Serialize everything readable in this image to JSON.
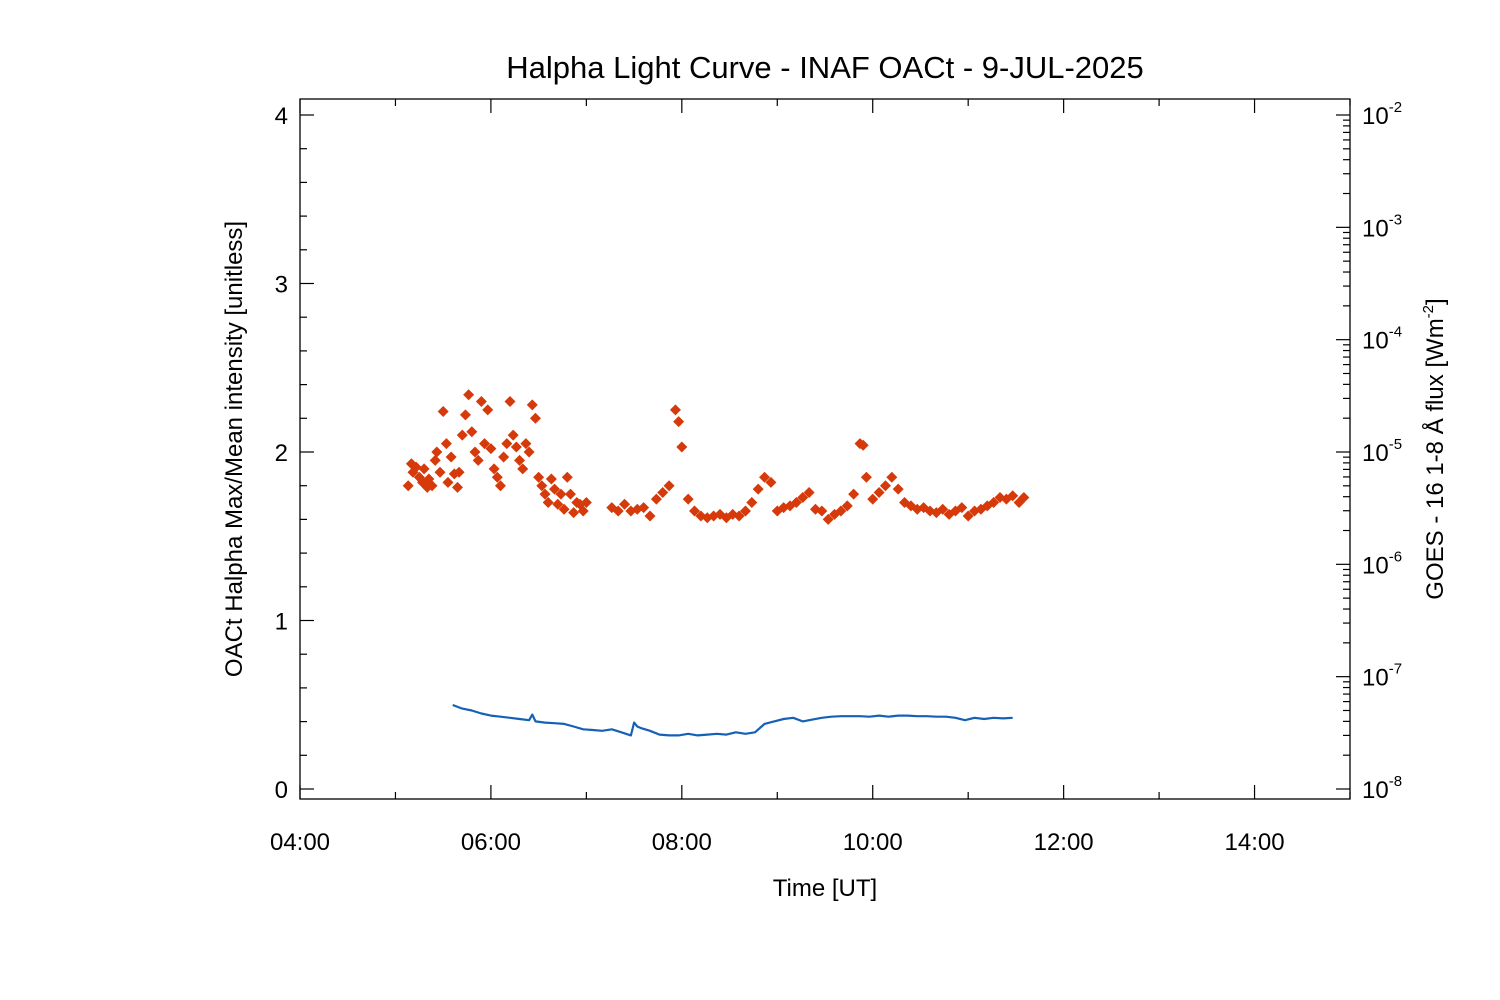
{
  "chart_data": {
    "type": "scatter",
    "title": "Halpha Light Curve - INAF OACt -  9-JUL-2025",
    "xlabel": "Time [UT]",
    "ylabel": "OACt Halpha Max/Mean intensity [unitless]",
    "y2label": {
      "main": "GOES - 16 1-8 Å flux [Wm",
      "exp": "-2",
      "close": "]"
    },
    "xlim": [
      "04:00",
      "15:00"
    ],
    "x_ticks": [
      "04:00",
      "06:00",
      "08:00",
      "10:00",
      "12:00",
      "14:00"
    ],
    "ylim": [
      0,
      4
    ],
    "y_ticks": [
      "0",
      "1",
      "2",
      "3",
      "4"
    ],
    "y2_scale": "log",
    "y2lim": [
      1e-08,
      0.01
    ],
    "y2_ticks": [
      {
        "base": "10",
        "exp": "-8"
      },
      {
        "base": "10",
        "exp": "-7"
      },
      {
        "base": "10",
        "exp": "-6"
      },
      {
        "base": "10",
        "exp": "-5"
      },
      {
        "base": "10",
        "exp": "-4"
      },
      {
        "base": "10",
        "exp": "-3"
      },
      {
        "base": "10",
        "exp": "-2"
      }
    ],
    "grid": false,
    "series": [
      {
        "marker": "diamond",
        "color": "#d63a0a",
        "axis": "left",
        "x": [
          "05:08",
          "05:10",
          "05:11",
          "05:13",
          "05:15",
          "05:17",
          "05:18",
          "05:20",
          "05:21",
          "05:23",
          "05:25",
          "05:26",
          "05:28",
          "05:30",
          "05:32",
          "05:33",
          "05:35",
          "05:37",
          "05:39",
          "05:40",
          "05:42",
          "05:44",
          "05:46",
          "05:48",
          "05:50",
          "05:52",
          "05:54",
          "05:56",
          "05:58",
          "06:00",
          "06:02",
          "06:04",
          "06:06",
          "06:08",
          "06:10",
          "06:12",
          "06:14",
          "06:16",
          "06:18",
          "06:20",
          "06:22",
          "06:24",
          "06:26",
          "06:28",
          "06:30",
          "06:32",
          "06:34",
          "06:36",
          "06:38",
          "06:40",
          "06:42",
          "06:44",
          "06:46",
          "06:48",
          "06:50",
          "06:52",
          "06:54",
          "06:56",
          "06:58",
          "07:00",
          "07:16",
          "07:20",
          "07:24",
          "07:28",
          "07:32",
          "07:36",
          "07:40",
          "07:44",
          "07:48",
          "07:52",
          "07:56",
          "07:58",
          "08:00",
          "08:04",
          "08:08",
          "08:12",
          "08:16",
          "08:20",
          "08:24",
          "08:28",
          "08:32",
          "08:36",
          "08:40",
          "08:44",
          "08:48",
          "08:52",
          "08:56",
          "09:00",
          "09:04",
          "09:08",
          "09:12",
          "09:16",
          "09:20",
          "09:24",
          "09:28",
          "09:32",
          "09:36",
          "09:40",
          "09:44",
          "09:48",
          "09:52",
          "09:54",
          "09:56",
          "10:00",
          "10:04",
          "10:08",
          "10:12",
          "10:16",
          "10:20",
          "10:24",
          "10:28",
          "10:32",
          "10:36",
          "10:40",
          "10:44",
          "10:48",
          "10:52",
          "10:56",
          "11:00",
          "11:04",
          "11:08",
          "11:12",
          "11:16",
          "11:20",
          "11:24",
          "11:28",
          "11:32",
          "11:35"
        ],
        "y": [
          1.8,
          1.93,
          1.88,
          1.91,
          1.85,
          1.82,
          1.9,
          1.79,
          1.84,
          1.8,
          1.95,
          2.0,
          1.88,
          2.24,
          2.05,
          1.82,
          1.97,
          1.87,
          1.79,
          1.88,
          2.1,
          2.22,
          2.34,
          2.12,
          2.0,
          1.95,
          2.3,
          2.05,
          2.25,
          2.02,
          1.9,
          1.85,
          1.8,
          1.97,
          2.05,
          2.3,
          2.1,
          2.03,
          1.95,
          1.9,
          2.05,
          2.0,
          2.28,
          2.2,
          1.85,
          1.8,
          1.75,
          1.7,
          1.84,
          1.78,
          1.69,
          1.75,
          1.66,
          1.85,
          1.75,
          1.64,
          1.7,
          1.69,
          1.65,
          1.7,
          1.67,
          1.65,
          1.69,
          1.65,
          1.66,
          1.67,
          1.62,
          1.72,
          1.76,
          1.8,
          2.25,
          2.18,
          2.03,
          1.72,
          1.65,
          1.62,
          1.61,
          1.62,
          1.63,
          1.61,
          1.63,
          1.62,
          1.65,
          1.7,
          1.78,
          1.85,
          1.82,
          1.65,
          1.67,
          1.68,
          1.7,
          1.73,
          1.76,
          1.66,
          1.65,
          1.6,
          1.63,
          1.65,
          1.68,
          1.75,
          2.05,
          2.04,
          1.85,
          1.72,
          1.76,
          1.8,
          1.85,
          1.78,
          1.7,
          1.68,
          1.66,
          1.67,
          1.65,
          1.64,
          1.66,
          1.63,
          1.65,
          1.67,
          1.62,
          1.65,
          1.66,
          1.68,
          1.7,
          1.73,
          1.72,
          1.74,
          1.7,
          1.73
        ]
      },
      {
        "marker": "line",
        "color": "#1660b8",
        "axis": "right",
        "x": [
          "05:36",
          "05:42",
          "05:48",
          "05:54",
          "06:00",
          "06:06",
          "06:12",
          "06:18",
          "06:24",
          "06:26",
          "06:28",
          "06:34",
          "06:40",
          "06:46",
          "06:52",
          "06:58",
          "07:04",
          "07:10",
          "07:16",
          "07:22",
          "07:28",
          "07:30",
          "07:32",
          "07:34",
          "07:40",
          "07:46",
          "07:52",
          "07:58",
          "08:04",
          "08:10",
          "08:16",
          "08:22",
          "08:28",
          "08:34",
          "08:40",
          "08:46",
          "08:52",
          "08:58",
          "09:04",
          "09:10",
          "09:16",
          "09:22",
          "09:28",
          "09:34",
          "09:40",
          "09:46",
          "09:52",
          "09:58",
          "10:04",
          "10:10",
          "10:16",
          "10:22",
          "10:28",
          "10:34",
          "10:40",
          "10:46",
          "10:52",
          "10:58",
          "11:04",
          "11:10",
          "11:16",
          "11:22",
          "11:28"
        ],
        "y": [
          5.6e-08,
          5.2e-08,
          5e-08,
          4.7e-08,
          4.5e-08,
          4.4e-08,
          4.3e-08,
          4.2e-08,
          4.1e-08,
          4.6e-08,
          4e-08,
          3.9e-08,
          3.85e-08,
          3.8e-08,
          3.6e-08,
          3.4e-08,
          3.35e-08,
          3.3e-08,
          3.4e-08,
          3.2e-08,
          3e-08,
          3.9e-08,
          3.6e-08,
          3.5e-08,
          3.3e-08,
          3.05e-08,
          3e-08,
          3e-08,
          3.1e-08,
          3e-08,
          3.05e-08,
          3.1e-08,
          3.05e-08,
          3.2e-08,
          3.1e-08,
          3.2e-08,
          3.8e-08,
          4e-08,
          4.2e-08,
          4.3e-08,
          4e-08,
          4.15e-08,
          4.3e-08,
          4.4e-08,
          4.45e-08,
          4.45e-08,
          4.45e-08,
          4.4e-08,
          4.5e-08,
          4.4e-08,
          4.5e-08,
          4.5e-08,
          4.45e-08,
          4.45e-08,
          4.4e-08,
          4.4e-08,
          4.3e-08,
          4.1e-08,
          4.3e-08,
          4.2e-08,
          4.3e-08,
          4.25e-08,
          4.3e-08
        ]
      }
    ]
  }
}
